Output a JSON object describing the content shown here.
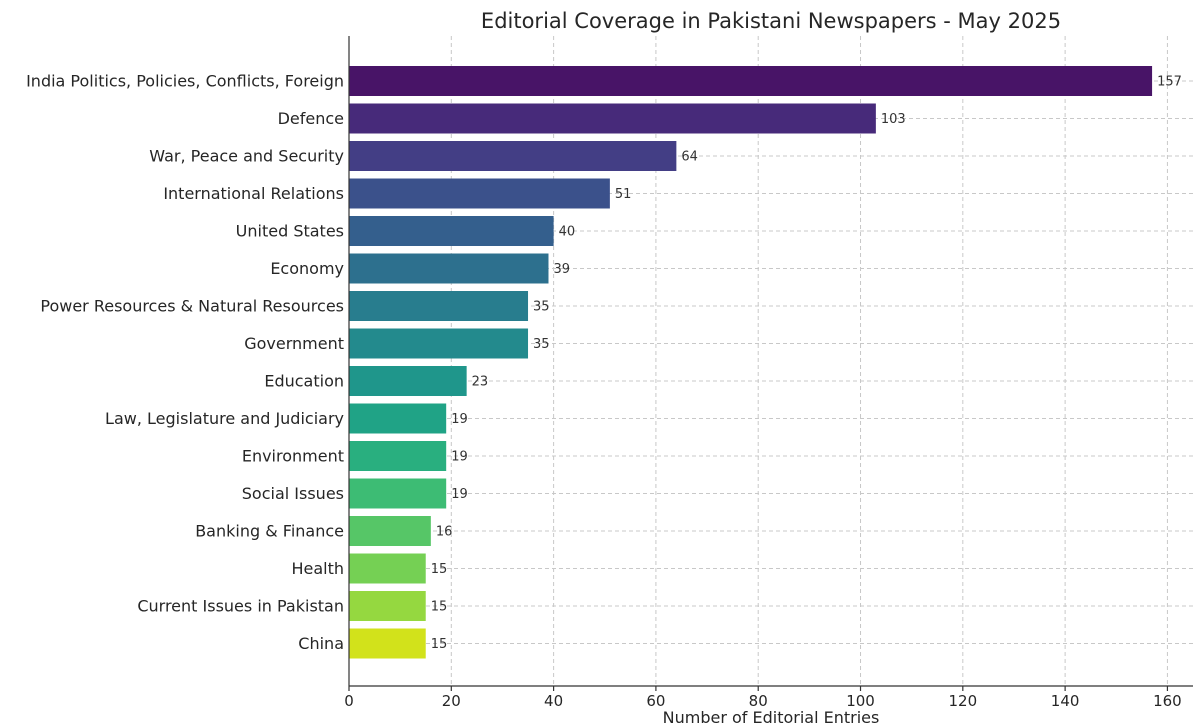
{
  "chart_data": {
    "type": "bar",
    "orientation": "horizontal",
    "title": "Editorial Coverage in Pakistani Newspapers - May 2025",
    "xlabel": "Number of Editorial Entries",
    "ylabel": "",
    "xlim": [
      0,
      165
    ],
    "xticks": [
      "0",
      "20",
      "40",
      "60",
      "80",
      "100",
      "120",
      "140",
      "160"
    ],
    "grid": true,
    "categories": [
      "India Politics, Policies, Conflicts, Foreign",
      "Defence",
      "War, Peace and Security",
      "International Relations",
      "United States",
      "Economy",
      "Power Resources & Natural Resources",
      "Government",
      "Education",
      "Law, Legislature and Judiciary",
      "Environment",
      "Social Issues",
      "Banking & Finance",
      "Health",
      "Current Issues in Pakistan",
      "China"
    ],
    "values": [
      157,
      103,
      64,
      51,
      40,
      39,
      35,
      35,
      23,
      19,
      19,
      19,
      16,
      15,
      15,
      15
    ],
    "value_labels": [
      "157",
      "103",
      "64",
      "51",
      "40",
      "39",
      "35",
      "35",
      "23",
      "19",
      "19",
      "19",
      "16",
      "15",
      "15",
      "15"
    ],
    "colors": [
      "#481467",
      "#472a7a",
      "#433e85",
      "#3b518b",
      "#345f8d",
      "#2d708e",
      "#287d8e",
      "#238a8d",
      "#1f968b",
      "#20a386",
      "#29af7f",
      "#3dbc74",
      "#56c667",
      "#75d054",
      "#95d840",
      "#d2e21b"
    ]
  }
}
